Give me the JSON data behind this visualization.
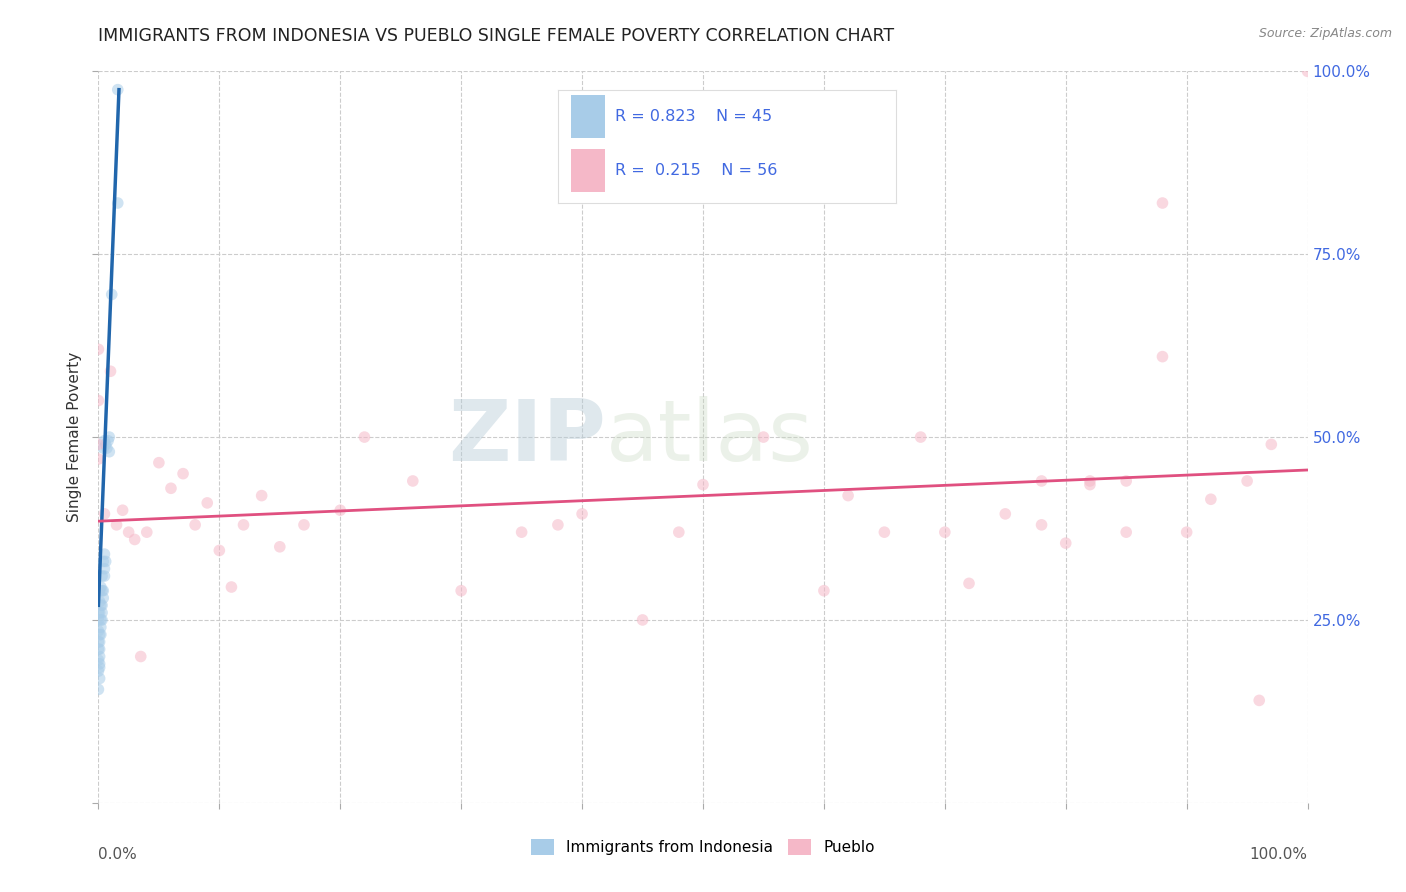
{
  "title": "IMMIGRANTS FROM INDONESIA VS PUEBLO SINGLE FEMALE POVERTY CORRELATION CHART",
  "source": "Source: ZipAtlas.com",
  "ylabel": "Single Female Poverty",
  "watermark_zip": "ZIP",
  "watermark_atlas": "atlas",
  "legend_blue_R": "0.823",
  "legend_blue_N": "45",
  "legend_pink_R": "0.215",
  "legend_pink_N": "56",
  "legend_label1": "Immigrants from Indonesia",
  "legend_label2": "Pueblo",
  "blue_color": "#a8cce8",
  "pink_color": "#f5b8c8",
  "blue_line_color": "#2166ac",
  "pink_line_color": "#e05080",
  "legend_text_color": "#4169E1",
  "right_tick_color": "#4169E1",
  "xlim": [
    0.0,
    1.0
  ],
  "ylim": [
    0.0,
    1.0
  ],
  "xticks": [
    0.0,
    0.1,
    0.2,
    0.3,
    0.4,
    0.5,
    0.6,
    0.7,
    0.8,
    0.9,
    1.0
  ],
  "yticks": [
    0.0,
    0.25,
    0.5,
    0.75,
    1.0
  ],
  "right_yticklabels": [
    "",
    "25.0%",
    "50.0%",
    "75.0%",
    "100.0%"
  ],
  "blue_scatter_x": [
    0.016,
    0.016,
    0.011,
    0.009,
    0.009,
    0.008,
    0.007,
    0.006,
    0.006,
    0.005,
    0.005,
    0.005,
    0.005,
    0.004,
    0.004,
    0.004,
    0.004,
    0.003,
    0.003,
    0.003,
    0.003,
    0.003,
    0.002,
    0.002,
    0.002,
    0.002,
    0.002,
    0.001,
    0.001,
    0.001,
    0.001,
    0.001,
    0.001,
    0.001,
    0.001,
    0.001,
    0.001,
    0.0,
    0.0,
    0.0,
    0.0,
    0.0,
    0.0,
    0.0,
    0.0
  ],
  "blue_scatter_y": [
    0.975,
    0.82,
    0.695,
    0.5,
    0.48,
    0.495,
    0.485,
    0.49,
    0.33,
    0.34,
    0.32,
    0.31,
    0.495,
    0.33,
    0.29,
    0.28,
    0.485,
    0.31,
    0.29,
    0.27,
    0.26,
    0.25,
    0.295,
    0.27,
    0.25,
    0.24,
    0.23,
    0.29,
    0.275,
    0.26,
    0.23,
    0.22,
    0.21,
    0.2,
    0.19,
    0.185,
    0.17,
    0.26,
    0.25,
    0.235,
    0.22,
    0.21,
    0.195,
    0.18,
    0.155
  ],
  "pink_scatter_x": [
    0.0,
    0.0,
    0.0,
    0.0,
    0.005,
    0.01,
    0.015,
    0.02,
    0.025,
    0.03,
    0.035,
    0.04,
    0.05,
    0.06,
    0.07,
    0.08,
    0.09,
    0.1,
    0.11,
    0.12,
    0.135,
    0.15,
    0.17,
    0.2,
    0.22,
    0.26,
    0.3,
    0.35,
    0.38,
    0.4,
    0.45,
    0.48,
    0.5,
    0.55,
    0.6,
    0.62,
    0.65,
    0.68,
    0.7,
    0.75,
    0.78,
    0.8,
    0.82,
    0.85,
    0.88,
    0.9,
    0.92,
    0.95,
    0.97,
    1.0,
    0.88,
    0.85,
    0.82,
    0.96,
    0.78,
    0.72
  ],
  "pink_scatter_y": [
    0.49,
    0.47,
    0.62,
    0.55,
    0.395,
    0.59,
    0.38,
    0.4,
    0.37,
    0.36,
    0.2,
    0.37,
    0.465,
    0.43,
    0.45,
    0.38,
    0.41,
    0.345,
    0.295,
    0.38,
    0.42,
    0.35,
    0.38,
    0.4,
    0.5,
    0.44,
    0.29,
    0.37,
    0.38,
    0.395,
    0.25,
    0.37,
    0.435,
    0.5,
    0.29,
    0.42,
    0.37,
    0.5,
    0.37,
    0.395,
    0.38,
    0.355,
    0.435,
    0.37,
    0.61,
    0.37,
    0.415,
    0.44,
    0.49,
    1.0,
    0.82,
    0.44,
    0.44,
    0.14,
    0.44,
    0.3
  ],
  "blue_line_x": [
    0.0,
    0.017
  ],
  "blue_line_y": [
    0.27,
    0.975
  ],
  "pink_line_x": [
    0.0,
    1.0
  ],
  "pink_line_y": [
    0.385,
    0.455
  ],
  "background_color": "#ffffff",
  "grid_color": "#cccccc",
  "title_fontsize": 12.5,
  "axis_label_fontsize": 11,
  "tick_fontsize": 11,
  "marker_size": 70,
  "marker_alpha": 0.55
}
